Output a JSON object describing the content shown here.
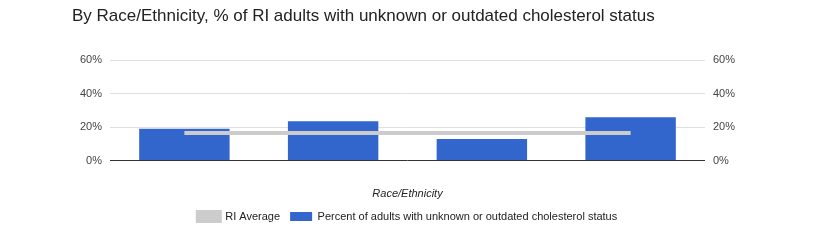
{
  "chart_data": {
    "type": "bar",
    "title": "By Race/Ethnicity, % of RI adults with unknown or outdated cholesterol status",
    "xlabel": "Race/Ethnicity",
    "categories": [
      null,
      null,
      null,
      null
    ],
    "series": [
      {
        "name": "Percent of adults with unknown or outdated cholesterol status",
        "type": "bar",
        "color": "#3366cc",
        "values": [
          19,
          23.5,
          13,
          26
        ]
      },
      {
        "name": "RI Average",
        "type": "line",
        "color": "#cccccc",
        "axis": "y2",
        "values": [
          16.5,
          16.5,
          16.5,
          16.5
        ]
      }
    ],
    "ylim": [
      0,
      60
    ],
    "yticks": [
      {
        "value": 0,
        "label": "0%"
      },
      {
        "value": 20,
        "label": "20%"
      },
      {
        "value": 40,
        "label": "40%"
      },
      {
        "value": 60,
        "label": "60%"
      }
    ],
    "y2lim": [
      0,
      60
    ],
    "y2ticks": [
      {
        "value": 0,
        "label": "0%"
      },
      {
        "value": 20,
        "label": "20%"
      },
      {
        "value": 40,
        "label": "40%"
      },
      {
        "value": 60,
        "label": "60%"
      }
    ],
    "grid": true,
    "legend": "bottom"
  }
}
